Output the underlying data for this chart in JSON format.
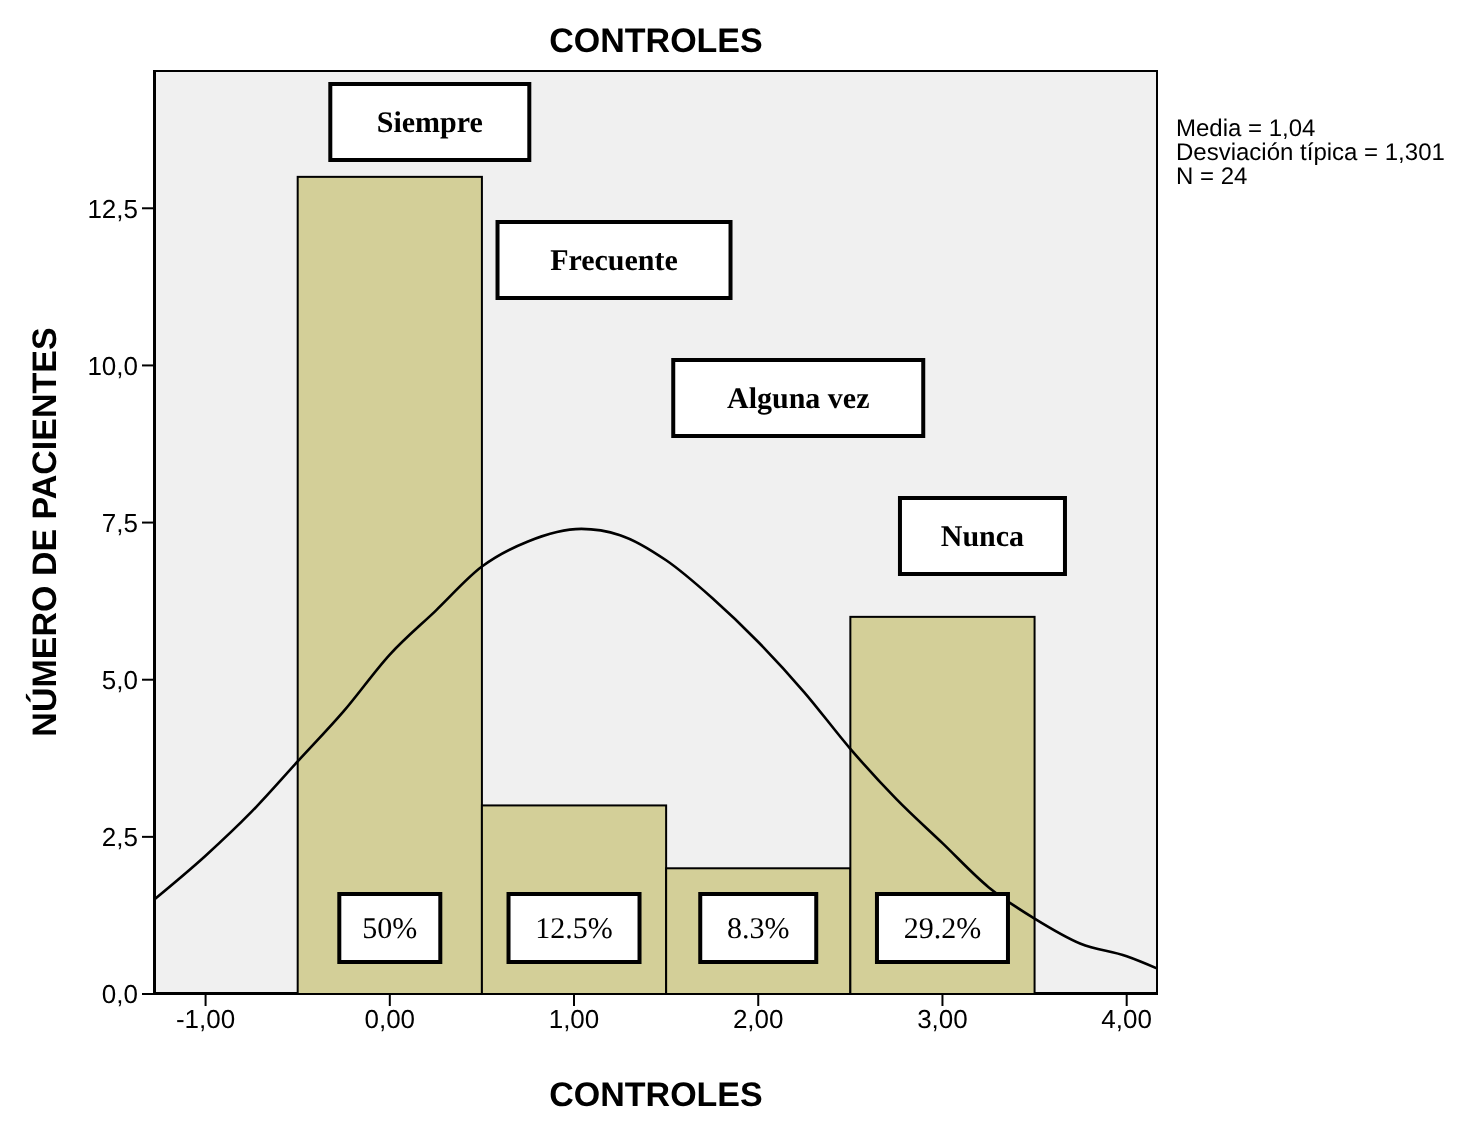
{
  "chart_data": {
    "type": "histogram",
    "title": "CONTROLES",
    "xlabel": "CONTROLES",
    "ylabel": "NÚMERO DE PACIENTES",
    "bins": [
      -0.5,
      0.5,
      1.5,
      2.5,
      3.5
    ],
    "values": [
      13,
      3,
      2,
      6
    ],
    "color": "#d3cf98",
    "series": [
      {
        "type": "line",
        "color": "#000000",
        "x": [
          -1.28,
          -1.0,
          -0.75,
          -0.5,
          -0.25,
          0,
          0.25,
          0.5,
          0.75,
          1.04,
          1.25,
          1.5,
          1.75,
          2.0,
          2.25,
          2.5,
          2.75,
          3.0,
          3.25,
          3.5,
          3.75,
          4.0,
          4.17
        ],
        "values": [
          1.5,
          2.2,
          2.9,
          3.7,
          4.5,
          5.4,
          6.1,
          6.8,
          7.2,
          7.4,
          7.3,
          6.9,
          6.3,
          5.6,
          4.8,
          3.9,
          3.1,
          2.4,
          1.7,
          1.2,
          0.8,
          0.6,
          0.4
        ]
      }
    ],
    "xlim": [
      -1.28,
      4.17
    ],
    "xticks": [
      {
        "value": -1,
        "label": "-1,00"
      },
      {
        "value": 0,
        "label": "0,00"
      },
      {
        "value": 1,
        "label": "1,00"
      },
      {
        "value": 2,
        "label": "2,00"
      },
      {
        "value": 3,
        "label": "3,00"
      },
      {
        "value": 4,
        "label": "4,00"
      }
    ],
    "ylim": [
      0,
      14.7
    ],
    "yticks": [
      {
        "value": 0,
        "label": "0,0"
      },
      {
        "value": 2.5,
        "label": "2,5"
      },
      {
        "value": 5,
        "label": "5,0"
      },
      {
        "value": 7.5,
        "label": "7,5"
      },
      {
        "value": 10,
        "label": "10,0"
      },
      {
        "value": 12.5,
        "label": "12,5"
      }
    ],
    "grid": false,
    "legend": false,
    "marker": "none",
    "line_style": "solid",
    "annotations": [
      "Siempre",
      "Frecuente",
      "Alguna vez",
      "Nunca",
      "50%",
      "12.5%",
      "8.3%",
      "29.2%",
      "Media = 1,04",
      "Desviación típica = 1,301",
      "N = 24"
    ]
  }
}
